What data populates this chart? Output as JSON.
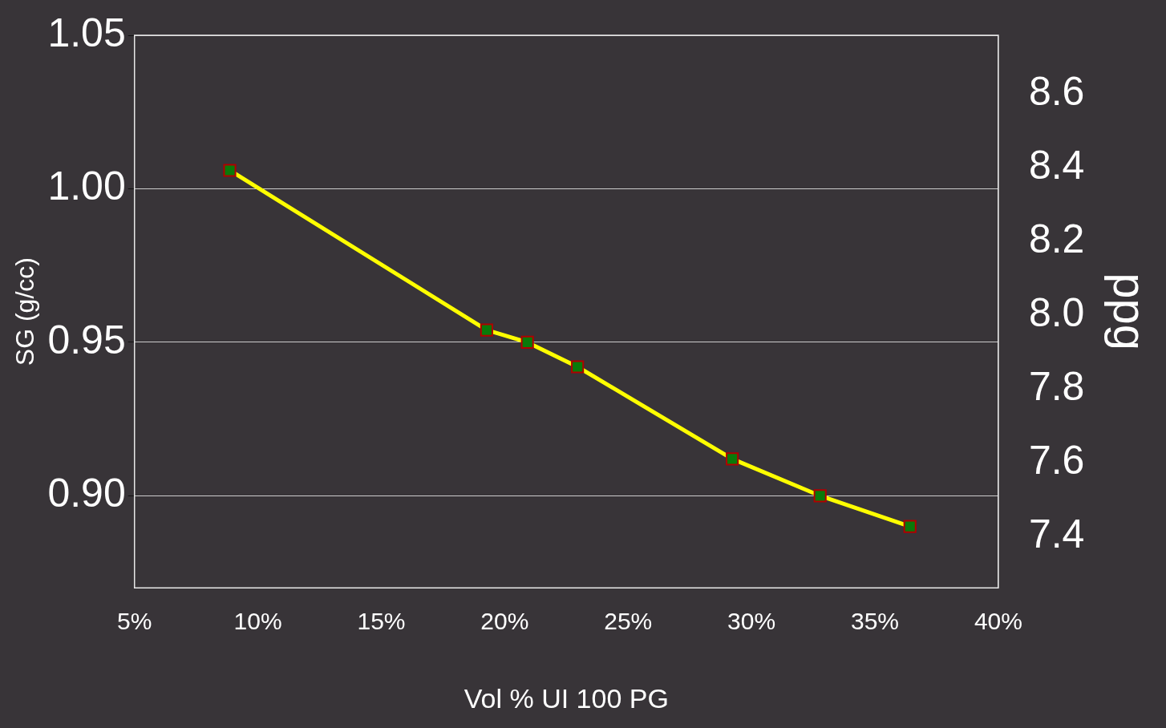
{
  "chart_data": {
    "type": "line",
    "xlabel": "Vol % UI 100 PG",
    "ylabel": "SG (g/cc)",
    "y2label": "ppg",
    "x": [
      8.86,
      19.27,
      20.92,
      22.95,
      29.22,
      32.78,
      36.42
    ],
    "series": [
      {
        "color": "#ffff00",
        "values": [
          1.006,
          0.954,
          0.95,
          0.942,
          0.912,
          0.9,
          0.89
        ]
      }
    ],
    "xlim": [
      5,
      40
    ],
    "xticks": [
      {
        "value": 5,
        "label": "5%"
      },
      {
        "value": 10,
        "label": "10%"
      },
      {
        "value": 15,
        "label": "15%"
      },
      {
        "value": 20,
        "label": "20%"
      },
      {
        "value": 25,
        "label": "25%"
      },
      {
        "value": 30,
        "label": "30%"
      },
      {
        "value": 35,
        "label": "35%"
      },
      {
        "value": 40,
        "label": "40%"
      }
    ],
    "ylim": [
      0.87,
      1.05
    ],
    "yticks": [
      {
        "value": 0.9,
        "label": "0.90"
      },
      {
        "value": 0.95,
        "label": "0.95"
      },
      {
        "value": 1.0,
        "label": "1.00"
      },
      {
        "value": 1.05,
        "label": "1.05"
      }
    ],
    "y2lim": [
      7.26,
      8.76
    ],
    "y2ticks": [
      7.4,
      7.6,
      7.8,
      {
        "value": 8,
        "label": "8.0"
      },
      8.2,
      8.4,
      8.6
    ],
    "grid": "y",
    "marker": "square",
    "line_style": "solid",
    "legend": false
  }
}
